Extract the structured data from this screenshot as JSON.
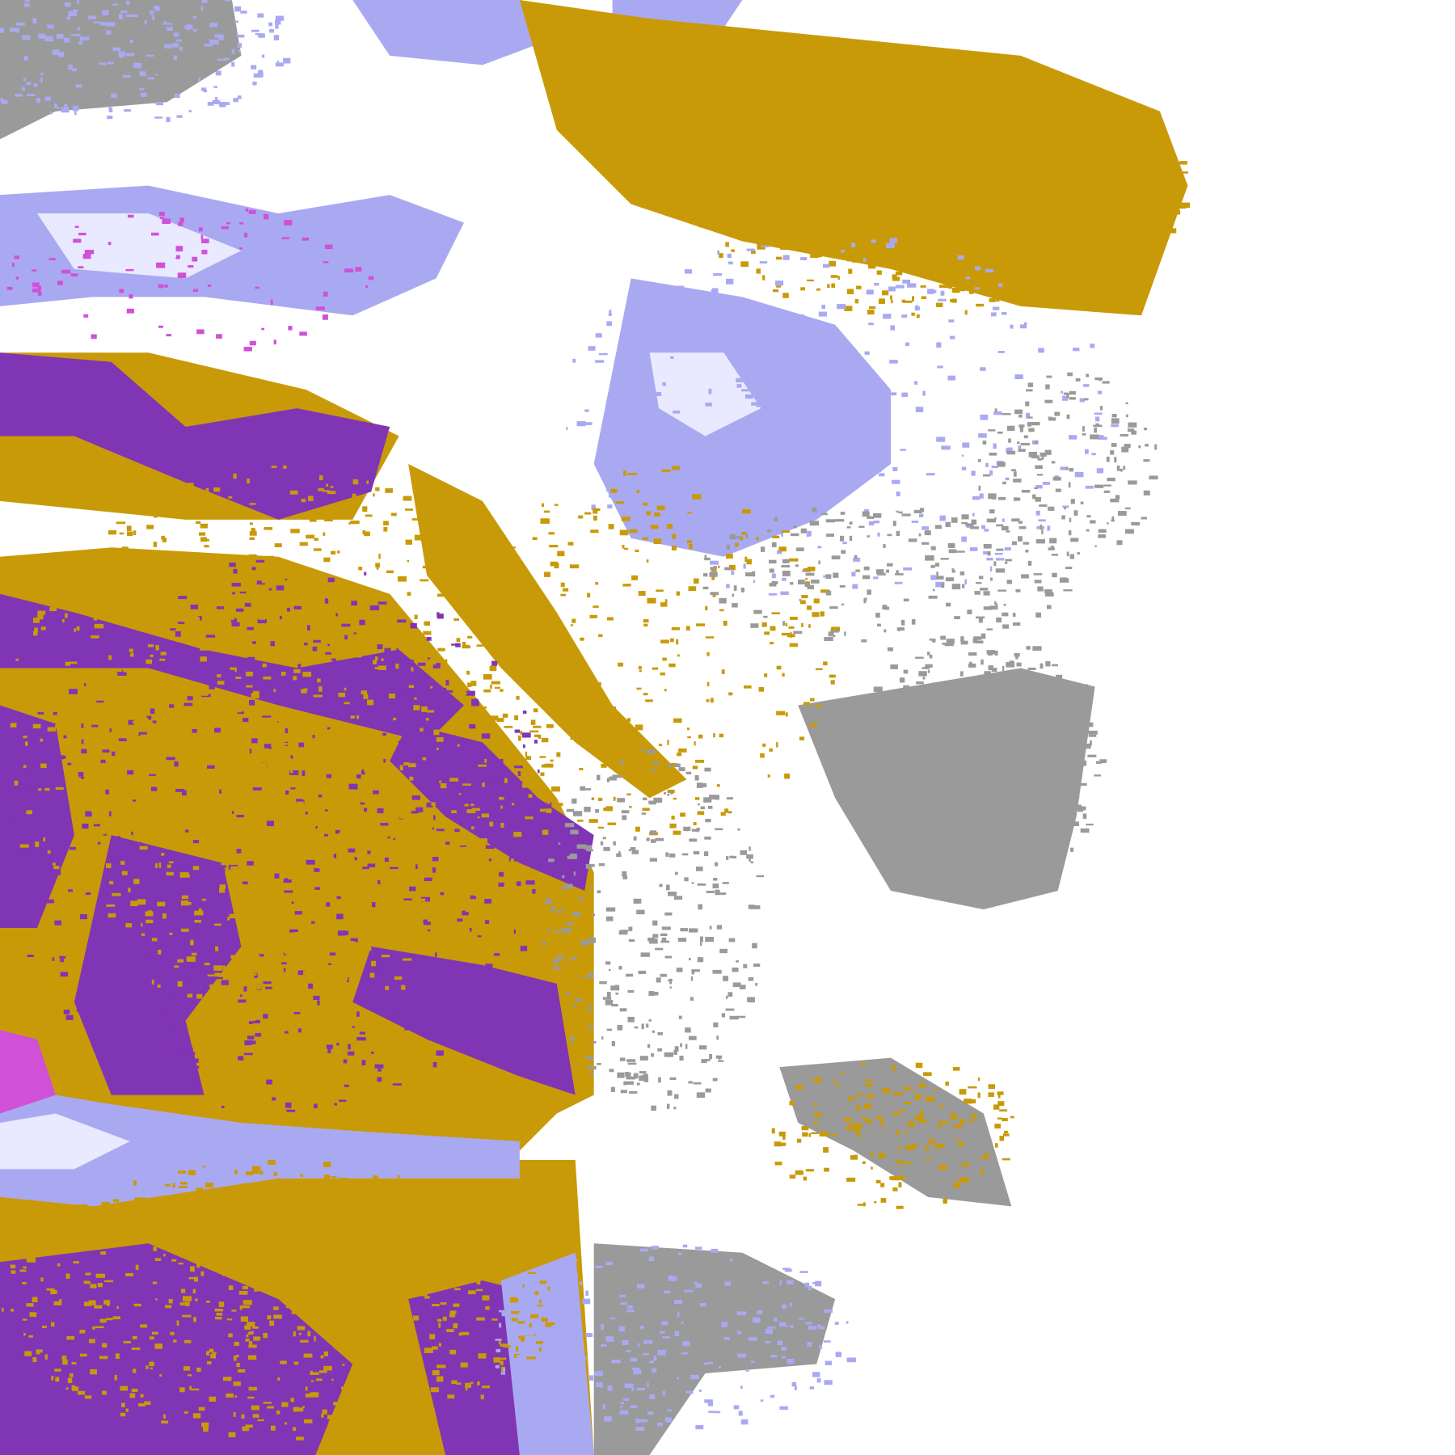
{
  "map": {
    "background": "#ffffff",
    "palette": {
      "purple": "#8035b4",
      "gold": "#c99a08",
      "gray": "#9a9a9a",
      "lavender": "#a9a9f2",
      "pale": "#e9e9ff",
      "magenta": "#d050d8"
    }
  }
}
